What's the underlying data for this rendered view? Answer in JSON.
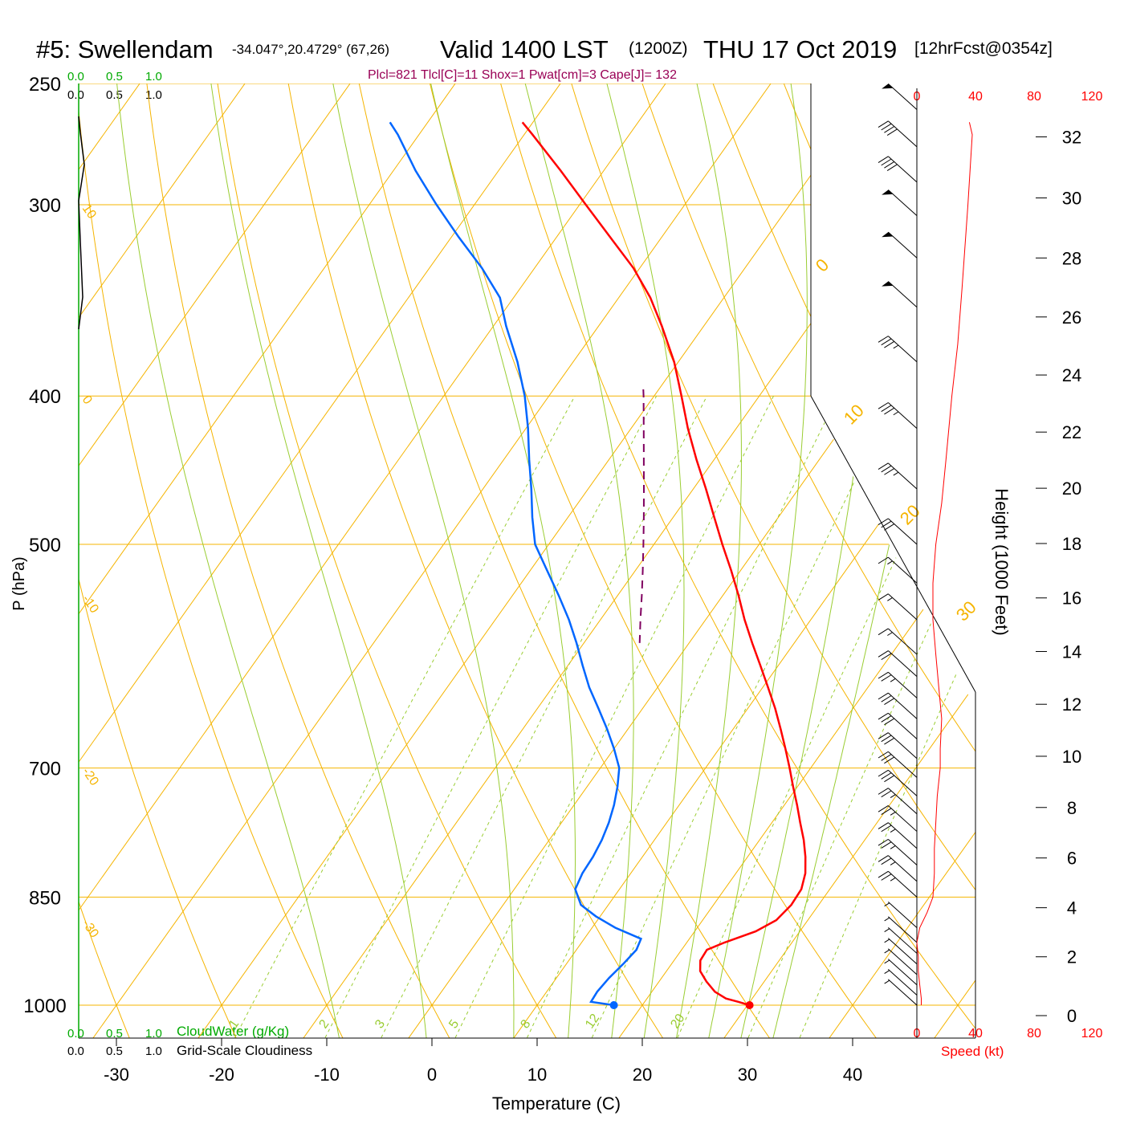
{
  "header": {
    "station": "#5: Swellendam",
    "coords": "-34.047°,20.4729° (67,26)",
    "valid": "Valid 1400 LST",
    "utc": "(1200Z)",
    "date": "THU 17 Oct 2019",
    "forecast": "[12hrFcst@0354z]",
    "params": "Plcl=821 Tlcl[C]=11 Shox=1 Pwat[cm]=3 Cape[J]= 132"
  },
  "cloud": {
    "top_green_ticks": [
      "0.0",
      "0.5",
      "1.0"
    ],
    "top_black_ticks": [
      "0.0",
      "0.5",
      "1.0"
    ],
    "bottom_green_ticks": [
      "0.0",
      "0.5",
      "1.0"
    ],
    "bottom_black_ticks": [
      "0.0",
      "0.5",
      "1.0"
    ],
    "cloudwater_label": "CloudWater (g/Kg)",
    "cloudiness_label": "Grid-Scale Cloudiness"
  },
  "wind": {
    "speed_ticks": [
      "0",
      "40",
      "80",
      "120"
    ],
    "speed_label": "Speed (kt)"
  },
  "colors": {
    "isobar": "#f5b400",
    "isotherm": "#f5b400",
    "dry_adiabat": "#f5b400",
    "moist_adiabat": "#9acd32",
    "mixing_ratio": "#9acd32",
    "temperature": "#ff0000",
    "dewpoint": "#0066ff",
    "parcel": "#800060",
    "title_params": "#990055",
    "cloud_green": "#00aa00",
    "speed_red": "#ff0000"
  },
  "chart_data": {
    "type": "line",
    "subtype": "skew-T log-P sounding",
    "xlabel": "Temperature (C)",
    "ylabel": "P (hPa)",
    "y2label": "Height (1000 Feet)",
    "x_ticks": [
      -30,
      -20,
      -10,
      0,
      10,
      20,
      30,
      40
    ],
    "pressure_ticks": [
      250,
      300,
      400,
      500,
      700,
      850,
      1000
    ],
    "height_ticks": [
      0,
      2,
      4,
      6,
      8,
      10,
      12,
      14,
      16,
      18,
      20,
      22,
      24,
      26,
      28,
      30,
      32
    ],
    "isotherm_labels": [
      {
        "value": "10",
        "at_pressure": 300
      },
      {
        "value": "0",
        "at_pressure": 400
      },
      {
        "value": "-10",
        "at_pressure": 540
      },
      {
        "value": "-20",
        "at_pressure": 700
      },
      {
        "value": "-30",
        "at_pressure": 880
      }
    ],
    "dry_adiabat_labels": [
      {
        "value": "0",
        "theta_c": 40
      },
      {
        "value": "10",
        "theta_c": 50
      },
      {
        "value": "20",
        "theta_c": 60
      },
      {
        "value": "30",
        "theta_c": 70
      }
    ],
    "mixing_ratio_labels": [
      "1",
      "2",
      "3",
      "5",
      "8",
      "12",
      "20"
    ],
    "temperature_profile": [
      {
        "p": 1000,
        "t": 30.2
      },
      {
        "p": 995,
        "t": 28.9
      },
      {
        "p": 990,
        "t": 27.5
      },
      {
        "p": 980,
        "t": 26.0
      },
      {
        "p": 965,
        "t": 24.5
      },
      {
        "p": 950,
        "t": 23.2
      },
      {
        "p": 935,
        "t": 22.5
      },
      {
        "p": 920,
        "t": 22.4
      },
      {
        "p": 910,
        "t": 23.6
      },
      {
        "p": 895,
        "t": 25.8
      },
      {
        "p": 880,
        "t": 27.0
      },
      {
        "p": 860,
        "t": 27.4
      },
      {
        "p": 840,
        "t": 27.3
      },
      {
        "p": 820,
        "t": 26.6
      },
      {
        "p": 800,
        "t": 25.5
      },
      {
        "p": 780,
        "t": 24.2
      },
      {
        "p": 760,
        "t": 22.7
      },
      {
        "p": 740,
        "t": 21.2
      },
      {
        "p": 720,
        "t": 19.6
      },
      {
        "p": 700,
        "t": 18.0
      },
      {
        "p": 680,
        "t": 16.3
      },
      {
        "p": 660,
        "t": 14.5
      },
      {
        "p": 640,
        "t": 12.6
      },
      {
        "p": 620,
        "t": 10.5
      },
      {
        "p": 600,
        "t": 8.3
      },
      {
        "p": 580,
        "t": 6.0
      },
      {
        "p": 560,
        "t": 3.7
      },
      {
        "p": 540,
        "t": 1.5
      },
      {
        "p": 520,
        "t": -0.9
      },
      {
        "p": 500,
        "t": -3.5
      },
      {
        "p": 480,
        "t": -6.1
      },
      {
        "p": 460,
        "t": -8.8
      },
      {
        "p": 440,
        "t": -11.7
      },
      {
        "p": 420,
        "t": -14.6
      },
      {
        "p": 400,
        "t": -17.4
      },
      {
        "p": 380,
        "t": -20.4
      },
      {
        "p": 360,
        "t": -24.0
      },
      {
        "p": 345,
        "t": -27.0
      },
      {
        "p": 330,
        "t": -30.6
      },
      {
        "p": 315,
        "t": -34.9
      },
      {
        "p": 300,
        "t": -39.4
      },
      {
        "p": 285,
        "t": -44.1
      },
      {
        "p": 270,
        "t": -49.2
      },
      {
        "p": 265,
        "t": -51.0
      }
    ],
    "dewpoint_profile": [
      {
        "p": 1000,
        "t": 17.3
      },
      {
        "p": 995,
        "t": 14.9
      },
      {
        "p": 980,
        "t": 14.8
      },
      {
        "p": 960,
        "t": 15.0
      },
      {
        "p": 940,
        "t": 15.4
      },
      {
        "p": 920,
        "t": 15.7
      },
      {
        "p": 905,
        "t": 15.4
      },
      {
        "p": 890,
        "t": 12.2
      },
      {
        "p": 875,
        "t": 9.6
      },
      {
        "p": 860,
        "t": 7.4
      },
      {
        "p": 840,
        "t": 5.8
      },
      {
        "p": 820,
        "t": 5.4
      },
      {
        "p": 800,
        "t": 5.3
      },
      {
        "p": 780,
        "t": 5.0
      },
      {
        "p": 760,
        "t": 4.5
      },
      {
        "p": 740,
        "t": 3.8
      },
      {
        "p": 720,
        "t": 2.9
      },
      {
        "p": 700,
        "t": 1.8
      },
      {
        "p": 680,
        "t": 0.0
      },
      {
        "p": 660,
        "t": -2.0
      },
      {
        "p": 640,
        "t": -4.2
      },
      {
        "p": 620,
        "t": -6.5
      },
      {
        "p": 600,
        "t": -8.6
      },
      {
        "p": 580,
        "t": -10.7
      },
      {
        "p": 560,
        "t": -13.0
      },
      {
        "p": 540,
        "t": -15.6
      },
      {
        "p": 520,
        "t": -18.4
      },
      {
        "p": 500,
        "t": -21.3
      },
      {
        "p": 480,
        "t": -23.4
      },
      {
        "p": 460,
        "t": -25.4
      },
      {
        "p": 440,
        "t": -27.6
      },
      {
        "p": 420,
        "t": -29.8
      },
      {
        "p": 400,
        "t": -32.3
      },
      {
        "p": 380,
        "t": -35.3
      },
      {
        "p": 360,
        "t": -38.8
      },
      {
        "p": 345,
        "t": -41.3
      },
      {
        "p": 330,
        "t": -45.0
      },
      {
        "p": 315,
        "t": -49.3
      },
      {
        "p": 300,
        "t": -53.6
      },
      {
        "p": 285,
        "t": -57.9
      },
      {
        "p": 270,
        "t": -62.0
      },
      {
        "p": 265,
        "t": -63.6
      }
    ],
    "parcel_profile": [
      {
        "p": 580,
        "t": -4.7
      },
      {
        "p": 560,
        "t": -6.2
      },
      {
        "p": 540,
        "t": -7.7
      },
      {
        "p": 520,
        "t": -9.3
      },
      {
        "p": 500,
        "t": -11.0
      },
      {
        "p": 480,
        "t": -12.8
      },
      {
        "p": 460,
        "t": -14.7
      },
      {
        "p": 440,
        "t": -16.7
      },
      {
        "p": 420,
        "t": -18.8
      },
      {
        "p": 400,
        "t": -21.0
      },
      {
        "p": 395,
        "t": -21.6
      }
    ],
    "surface_temperature": {
      "p": 1000,
      "t": 30.2
    },
    "surface_dewpoint": {
      "p": 1000,
      "t": 17.3
    },
    "wind_speed_profile": [
      {
        "p": 1000,
        "speed_kt": 3
      },
      {
        "p": 990,
        "speed_kt": 3
      },
      {
        "p": 970,
        "speed_kt": 2
      },
      {
        "p": 950,
        "speed_kt": 1
      },
      {
        "p": 930,
        "speed_kt": 1
      },
      {
        "p": 910,
        "speed_kt": 0
      },
      {
        "p": 890,
        "speed_kt": 2
      },
      {
        "p": 870,
        "speed_kt": 7
      },
      {
        "p": 850,
        "speed_kt": 11
      },
      {
        "p": 820,
        "speed_kt": 12
      },
      {
        "p": 790,
        "speed_kt": 12
      },
      {
        "p": 760,
        "speed_kt": 13
      },
      {
        "p": 730,
        "speed_kt": 14
      },
      {
        "p": 700,
        "speed_kt": 16
      },
      {
        "p": 680,
        "speed_kt": 16
      },
      {
        "p": 650,
        "speed_kt": 17
      },
      {
        "p": 620,
        "speed_kt": 15
      },
      {
        "p": 590,
        "speed_kt": 13
      },
      {
        "p": 560,
        "speed_kt": 11
      },
      {
        "p": 530,
        "speed_kt": 11
      },
      {
        "p": 500,
        "speed_kt": 13
      },
      {
        "p": 470,
        "speed_kt": 17
      },
      {
        "p": 440,
        "speed_kt": 20
      },
      {
        "p": 400,
        "speed_kt": 24
      },
      {
        "p": 370,
        "speed_kt": 28
      },
      {
        "p": 340,
        "speed_kt": 31
      },
      {
        "p": 300,
        "speed_kt": 35
      },
      {
        "p": 270,
        "speed_kt": 38
      },
      {
        "p": 265,
        "speed_kt": 36
      }
    ],
    "wind_barbs": [
      {
        "p": 1000,
        "kt": 5
      },
      {
        "p": 985,
        "kt": 5
      },
      {
        "p": 970,
        "kt": 5
      },
      {
        "p": 955,
        "kt": 5
      },
      {
        "p": 940,
        "kt": 5
      },
      {
        "p": 925,
        "kt": 5
      },
      {
        "p": 910,
        "kt": 5
      },
      {
        "p": 890,
        "kt": 5
      },
      {
        "p": 850,
        "kt": 25
      },
      {
        "p": 830,
        "kt": 25
      },
      {
        "p": 810,
        "kt": 25
      },
      {
        "p": 790,
        "kt": 25
      },
      {
        "p": 770,
        "kt": 25
      },
      {
        "p": 750,
        "kt": 25
      },
      {
        "p": 730,
        "kt": 30
      },
      {
        "p": 710,
        "kt": 30
      },
      {
        "p": 690,
        "kt": 30
      },
      {
        "p": 670,
        "kt": 30
      },
      {
        "p": 650,
        "kt": 30
      },
      {
        "p": 630,
        "kt": 25
      },
      {
        "p": 610,
        "kt": 20
      },
      {
        "p": 590,
        "kt": 15
      },
      {
        "p": 560,
        "kt": 15
      },
      {
        "p": 530,
        "kt": 15
      },
      {
        "p": 500,
        "kt": 30
      },
      {
        "p": 460,
        "kt": 35
      },
      {
        "p": 420,
        "kt": 35
      },
      {
        "p": 380,
        "kt": 35
      },
      {
        "p": 350,
        "kt": 50
      },
      {
        "p": 325,
        "kt": 50
      },
      {
        "p": 305,
        "kt": 50
      },
      {
        "p": 290,
        "kt": 40
      },
      {
        "p": 275,
        "kt": 40
      },
      {
        "p": 260,
        "kt": 50
      }
    ]
  }
}
